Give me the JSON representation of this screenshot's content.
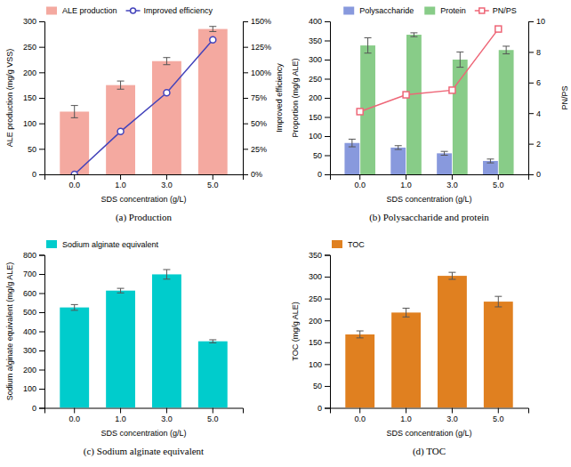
{
  "chart_data": [
    {
      "type": "bar",
      "title": "(a) Production",
      "categories": [
        "0.0",
        "1.0",
        "3.0",
        "5.0"
      ],
      "xlabel": "SDS concentration (g/L)",
      "ylabel": "ALE production (mg/g VSS)",
      "y2label": "Improved efficiency",
      "series": [
        {
          "name": "ALE production",
          "type": "bar",
          "color": "#f4a9a0",
          "values": [
            123,
            175,
            222,
            285
          ],
          "errors": [
            12,
            8,
            7,
            5
          ]
        },
        {
          "name": "Improved efficiency",
          "type": "line",
          "axis": "y2",
          "color": "#4444bb",
          "marker": "circle",
          "values": [
            0,
            42,
            80,
            132
          ]
        }
      ],
      "ylim": [
        0,
        300
      ],
      "yticks": [
        0,
        50,
        100,
        150,
        200,
        250,
        300
      ],
      "y2lim": [
        0,
        150
      ],
      "y2ticks": [
        {
          "value": 0,
          "label": "0%"
        },
        {
          "value": 25,
          "label": "25%"
        },
        {
          "value": 50,
          "label": "50%"
        },
        {
          "value": 75,
          "label": "75%"
        },
        {
          "value": 100,
          "label": "100%"
        },
        {
          "value": 125,
          "label": "125%"
        },
        {
          "value": 150,
          "label": "150%"
        }
      ],
      "legend": "upper left"
    },
    {
      "type": "bar",
      "title": "(b) Polysaccharide and protein",
      "categories": [
        "0.0",
        "1.0",
        "3.0",
        "5.0"
      ],
      "xlabel": "SDS concentration (g/L)",
      "ylabel": "Proportion (mg/g ALE)",
      "y2label": "PN/PS",
      "series": [
        {
          "name": "Polysaccharide",
          "type": "bar",
          "color": "#8899dd",
          "values": [
            82,
            70,
            55,
            35
          ],
          "errors": [
            10,
            5,
            5,
            5
          ]
        },
        {
          "name": "Protein",
          "type": "bar",
          "color": "#88cc88",
          "values": [
            337,
            365,
            300,
            325
          ],
          "errors": [
            20,
            5,
            20,
            10
          ]
        },
        {
          "name": "PN/PS",
          "type": "line",
          "axis": "y2",
          "color": "#ee6677",
          "marker": "square",
          "values": [
            4.1,
            5.2,
            5.5,
            9.5
          ]
        }
      ],
      "ylim": [
        0,
        400
      ],
      "yticks": [
        0,
        50,
        100,
        150,
        200,
        250,
        300,
        350,
        400
      ],
      "y2lim": [
        0,
        10
      ],
      "y2ticks": [
        0,
        2,
        4,
        6,
        8,
        10
      ],
      "legend": "upper center"
    },
    {
      "type": "bar",
      "title": "(c) Sodium alginate equivalent",
      "categories": [
        "0.0",
        "1.0",
        "3.0",
        "5.0"
      ],
      "xlabel": "SDS concentration (g/L)",
      "ylabel": "Sodium alginate equivalent (mg/g ALE)",
      "series": [
        {
          "name": "Sodium alginate equivalent",
          "type": "bar",
          "color": "#00cccc",
          "values": [
            525,
            613,
            698,
            348
          ],
          "errors": [
            15,
            12,
            25,
            8
          ]
        }
      ],
      "ylim": [
        0,
        800
      ],
      "yticks": [
        0,
        100,
        200,
        300,
        400,
        500,
        600,
        700,
        800
      ],
      "legend": "upper left"
    },
    {
      "type": "bar",
      "title": "(d) TOC",
      "categories": [
        "0.0",
        "1.0",
        "3.0",
        "5.0"
      ],
      "xlabel": "SDS concentration (g/L)",
      "ylabel": "TOC (mg/g ALE)",
      "series": [
        {
          "name": "TOC",
          "type": "bar",
          "color": "#e08020",
          "values": [
            168,
            218,
            302,
            243
          ],
          "errors": [
            8,
            10,
            8,
            12
          ]
        }
      ],
      "ylim": [
        0,
        350
      ],
      "yticks": [
        0,
        50,
        100,
        150,
        200,
        250,
        300,
        350
      ],
      "legend": "upper left"
    }
  ]
}
